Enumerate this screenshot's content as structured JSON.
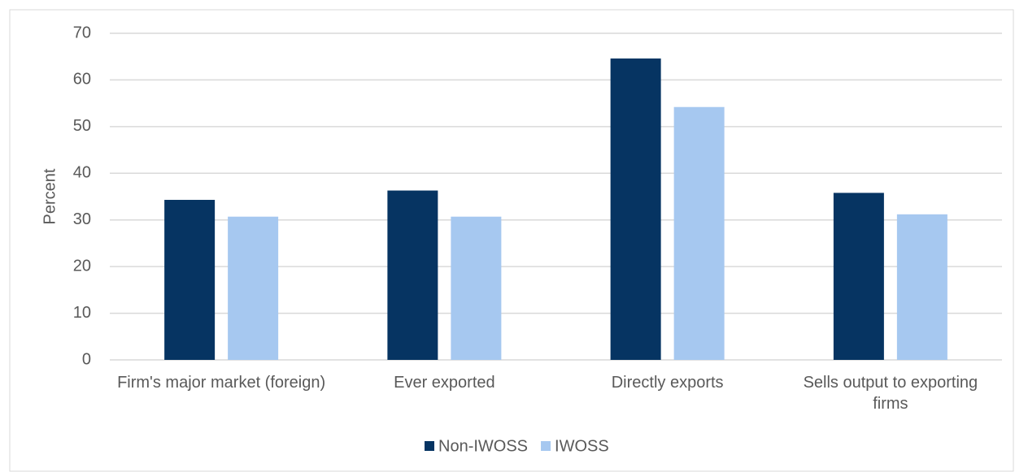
{
  "chart_data": {
    "type": "bar",
    "y_label": "Percent",
    "categories": [
      "Firm's major market (foreign)",
      "Ever exported",
      "Directly exports",
      "Sells output to exporting firms"
    ],
    "series": [
      {
        "name": "Non-IWOSS",
        "color": "#063462",
        "values": [
          34.3,
          36.3,
          64.6,
          35.8
        ]
      },
      {
        "name": "IWOSS",
        "color": "#a6c8f0",
        "values": [
          30.7,
          30.7,
          54.2,
          31.2
        ]
      }
    ],
    "ylim": [
      0,
      70
    ],
    "yticks": [
      0,
      10,
      20,
      30,
      40,
      50,
      60,
      70
    ],
    "grid": true,
    "legend": "bottom"
  }
}
